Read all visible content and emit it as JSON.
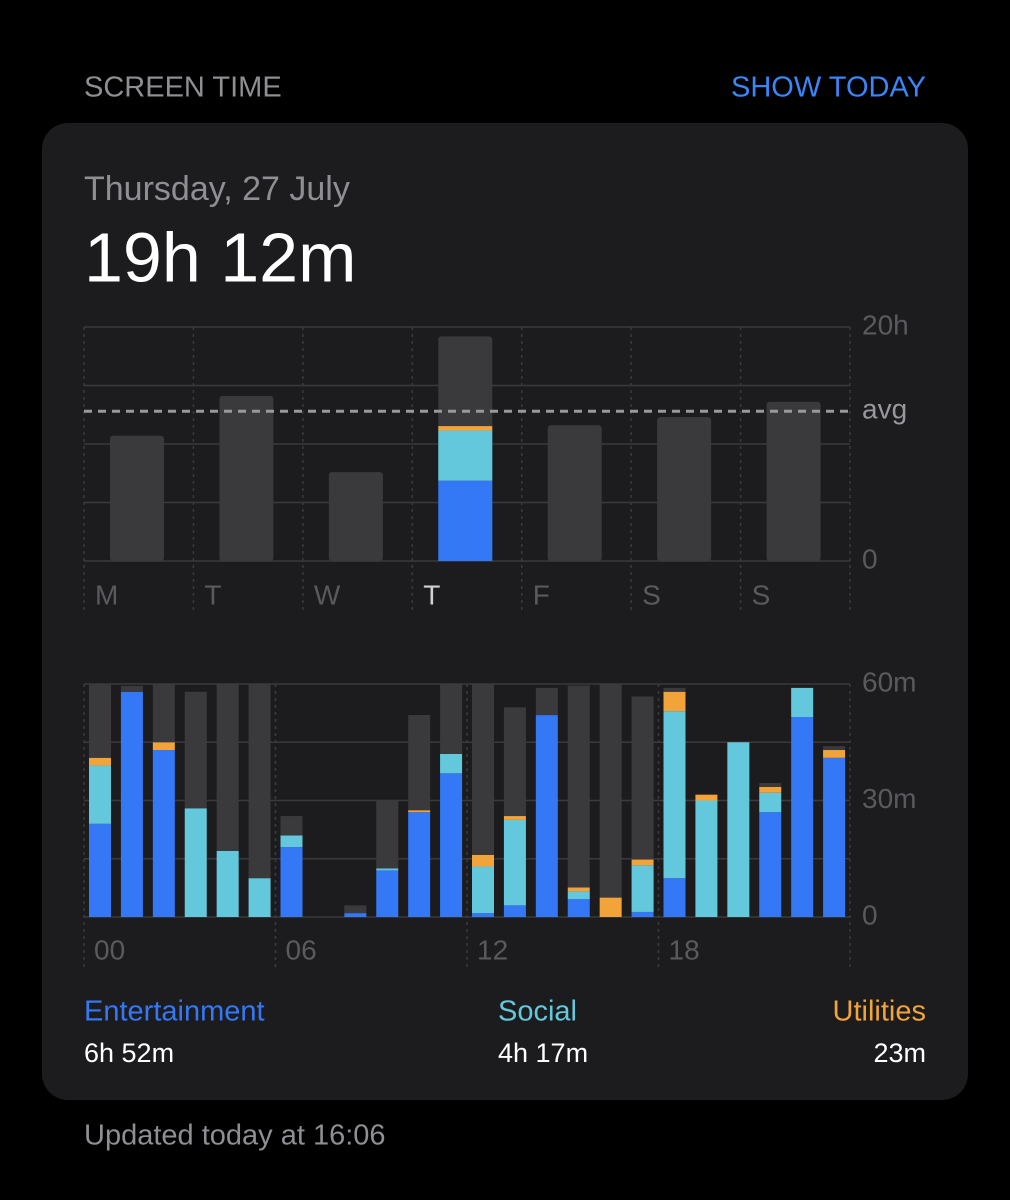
{
  "header": {
    "title": "SCREEN TIME",
    "action": "SHOW TODAY"
  },
  "card": {
    "date": "Thursday, 27 July",
    "total": "19h 12m"
  },
  "chart_data": [
    {
      "type": "bar",
      "categories": [
        "M",
        "T",
        "W",
        "T",
        "F",
        "S",
        "S"
      ],
      "values": [
        10.7,
        14.1,
        7.6,
        19.2,
        11.6,
        12.3,
        13.6
      ],
      "color": "#3a3a3c",
      "selected": 3,
      "breakdown": [
        {
          "name": "Entertainment",
          "color": "#3478f6",
          "value": 6.87,
          "value_label": "6h 52m"
        },
        {
          "name": "Social",
          "color": "#64c8dd",
          "value": 4.28,
          "value_label": "4h 17m"
        },
        {
          "name": "Utilities",
          "color": "#f2a33a",
          "value": 0.38,
          "value_label": "23m"
        }
      ],
      "avg": {
        "value": 12.8,
        "label": "avg"
      },
      "ylim": [
        0,
        20
      ],
      "yticks": [
        0,
        {
          "value": 5,
          "label": null
        },
        {
          "value": 10,
          "label": null
        },
        {
          "value": 15,
          "label": null
        },
        {
          "value": 20,
          "label": "20h"
        }
      ],
      "grid": true
    },
    {
      "type": "stacked-bar",
      "categories": [
        "00",
        null,
        null,
        null,
        null,
        null,
        "06",
        null,
        null,
        null,
        null,
        null,
        "12",
        null,
        null,
        null,
        null,
        null,
        "18",
        null,
        null,
        null,
        null,
        null
      ],
      "series": [
        {
          "color": "#3478f6",
          "values": [
            24,
            58,
            43,
            0,
            0,
            0,
            18,
            0,
            1,
            12,
            27,
            37,
            1,
            3,
            52,
            4.6,
            0,
            1.3,
            10,
            0,
            0,
            27,
            51.5,
            41
          ]
        },
        {
          "color": "#64c8dd",
          "values": [
            15,
            0,
            0,
            28,
            17,
            10,
            3,
            0,
            0,
            0.5,
            0,
            5,
            12,
            22,
            0,
            2,
            0,
            12,
            43,
            30,
            45,
            5,
            7.5,
            0
          ]
        },
        {
          "color": "#f2a33a",
          "values": [
            2,
            0,
            2,
            0,
            0,
            0,
            0,
            0,
            0,
            0,
            0.5,
            0,
            3,
            1,
            0,
            1,
            5,
            1.5,
            5,
            1.5,
            0,
            1.5,
            0,
            2
          ]
        },
        {
          "color": "#3a3a3c",
          "values": [
            19,
            1.5,
            15,
            30,
            43,
            50,
            5,
            0,
            2,
            17.5,
            24.5,
            18,
            44,
            28,
            7,
            52,
            55,
            42,
            1,
            0,
            0,
            1,
            0,
            1
          ]
        }
      ],
      "ylim": [
        0,
        60
      ],
      "yticks": [
        0,
        {
          "value": 15,
          "label": null
        },
        {
          "value": 30,
          "label": "30m"
        },
        {
          "value": 45,
          "label": null
        },
        {
          "value": 60,
          "label": "60m"
        }
      ],
      "grid": true
    }
  ],
  "footer": {
    "updated": "Updated today at 16:06"
  }
}
